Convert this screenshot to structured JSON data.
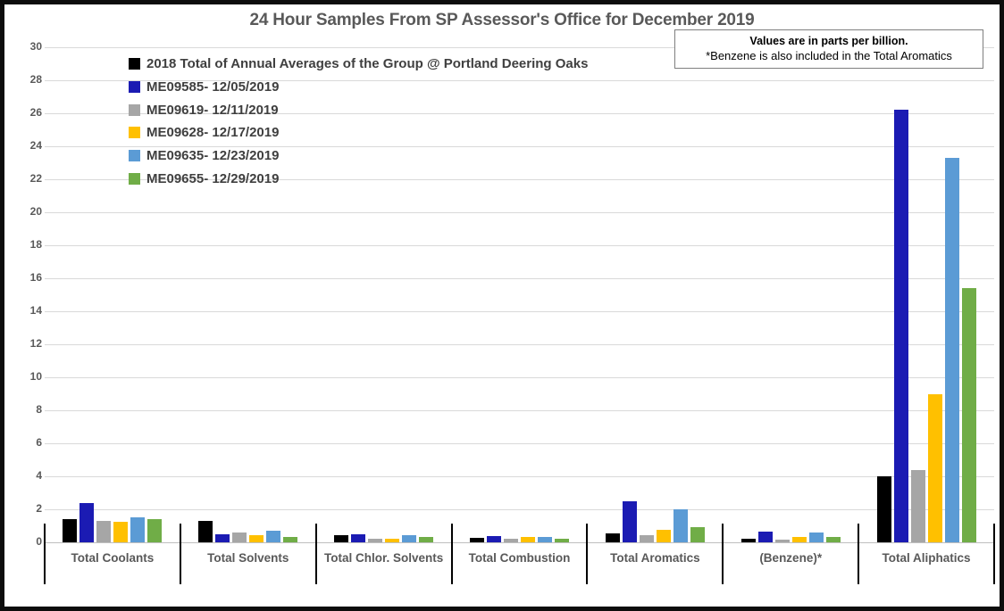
{
  "title": "24 Hour Samples From SP Assessor's Office for December 2019",
  "note": {
    "line1": "Values are in parts per billion.",
    "line2": "*Benzene is also included in the Total Aromatics"
  },
  "chart_data": {
    "type": "bar",
    "title": "24 Hour Samples From SP Assessor's Office for December 2019",
    "categories": [
      "Total Coolants",
      "Total Solvents",
      "Total Chlor. Solvents",
      "Total Combustion",
      "Total Aromatics",
      "(Benzene)*",
      "Total Aliphatics"
    ],
    "series": [
      {
        "name": "2018 Total of Annual Averages of the Group @ Portland Deering Oaks",
        "color": "#000000",
        "values": [
          1.4,
          1.3,
          0.45,
          0.25,
          0.55,
          0.2,
          4.0
        ]
      },
      {
        "name": "ME09585- 12/05/2019",
        "color": "#1b1bb3",
        "values": [
          2.4,
          0.5,
          0.5,
          0.4,
          2.5,
          0.65,
          26.2
        ]
      },
      {
        "name": "ME09619- 12/11/2019",
        "color": "#a6a6a6",
        "values": [
          1.3,
          0.6,
          0.2,
          0.2,
          0.45,
          0.15,
          4.4
        ]
      },
      {
        "name": "ME09628- 12/17/2019",
        "color": "#ffc000",
        "values": [
          1.25,
          0.45,
          0.2,
          0.3,
          0.75,
          0.3,
          9.0
        ]
      },
      {
        "name": "ME09635- 12/23/2019",
        "color": "#5b9bd5",
        "values": [
          1.5,
          0.7,
          0.45,
          0.3,
          2.0,
          0.6,
          23.3
        ]
      },
      {
        "name": "ME09655- 12/29/2019",
        "color": "#70ad47",
        "values": [
          1.4,
          0.35,
          0.35,
          0.2,
          0.9,
          0.3,
          15.4
        ]
      }
    ],
    "ylim": [
      0,
      30
    ],
    "ytick_step": 2,
    "yticks": [
      0,
      2,
      4,
      6,
      8,
      10,
      12,
      14,
      16,
      18,
      20,
      22,
      24,
      26,
      28,
      30
    ],
    "grid": true,
    "legend_position": "top-left",
    "xlabel": "",
    "ylabel": ""
  },
  "colors": {
    "title_text": "#595959",
    "axis_text": "#595959",
    "legend_text": "#3f3f3f",
    "gridline": "#d9d9d9",
    "axis_line": "#bfbfbf",
    "category_divider": "#000000",
    "note_border": "#7f7f7f",
    "frame_border": "#0d0d0d"
  }
}
